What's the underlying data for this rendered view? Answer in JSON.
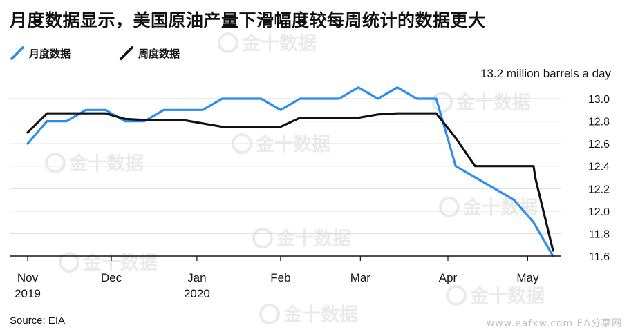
{
  "title": "月度数据显示，美国原油产量下滑幅度较每周统计的数据更大",
  "source": "Source: EIA",
  "watermark": {
    "brand": "金十数据",
    "site": "www.eafxw.com EA分享网"
  },
  "colors": {
    "monthly": "#2a8cf0",
    "weekly": "#111111",
    "grid": "#d9d9d9"
  },
  "chart_data": {
    "type": "line",
    "unit_label": "13.2 million barrels a day",
    "ylim": [
      11.6,
      13.2
    ],
    "y_ticks": [
      "13.0",
      "12.8",
      "12.6",
      "12.4",
      "12.2",
      "12.0",
      "11.8",
      "11.6"
    ],
    "x_ticks": [
      {
        "x": 0,
        "label": "Nov",
        "label2": "2019"
      },
      {
        "x": 4.3,
        "label": "Dec",
        "label2": ""
      },
      {
        "x": 8.7,
        "label": "Jan",
        "label2": "2020"
      },
      {
        "x": 13.0,
        "label": "Feb",
        "label2": ""
      },
      {
        "x": 17.1,
        "label": "Mar",
        "label2": ""
      },
      {
        "x": 21.6,
        "label": "Apr",
        "label2": ""
      },
      {
        "x": 25.7,
        "label": "May",
        "label2": ""
      }
    ],
    "xlim": [
      0,
      27
    ],
    "grid": "horizontal",
    "legend": "top-left",
    "series": [
      {
        "name": "月度数据",
        "color": "#2a8cf0",
        "points": [
          [
            0,
            12.6
          ],
          [
            1,
            12.8
          ],
          [
            2,
            12.8
          ],
          [
            3,
            12.9
          ],
          [
            4,
            12.9
          ],
          [
            5,
            12.8
          ],
          [
            6,
            12.8
          ],
          [
            7,
            12.9
          ],
          [
            8,
            12.9
          ],
          [
            9,
            12.9
          ],
          [
            10,
            13.0
          ],
          [
            11,
            13.0
          ],
          [
            12,
            13.0
          ],
          [
            13,
            12.9
          ],
          [
            14,
            13.0
          ],
          [
            15,
            13.0
          ],
          [
            16,
            13.0
          ],
          [
            17,
            13.1
          ],
          [
            18,
            13.0
          ],
          [
            19,
            13.1
          ],
          [
            20,
            13.0
          ],
          [
            21,
            13.0
          ],
          [
            22,
            12.4
          ],
          [
            23,
            12.3
          ],
          [
            24,
            12.2
          ],
          [
            25,
            12.1
          ],
          [
            26,
            11.9
          ],
          [
            27,
            11.6
          ]
        ]
      },
      {
        "name": "周度数据",
        "color": "#111111",
        "points": [
          [
            0,
            12.7
          ],
          [
            1,
            12.87
          ],
          [
            3,
            12.87
          ],
          [
            4,
            12.87
          ],
          [
            5,
            12.82
          ],
          [
            6,
            12.81
          ],
          [
            8,
            12.81
          ],
          [
            9,
            12.78
          ],
          [
            10,
            12.75
          ],
          [
            13,
            12.75
          ],
          [
            14,
            12.83
          ],
          [
            17,
            12.83
          ],
          [
            18,
            12.86
          ],
          [
            19,
            12.87
          ],
          [
            21,
            12.87
          ],
          [
            22,
            12.65
          ],
          [
            23,
            12.4
          ],
          [
            26,
            12.4
          ],
          [
            26.1,
            12.29
          ],
          [
            27,
            11.65
          ]
        ]
      }
    ]
  }
}
